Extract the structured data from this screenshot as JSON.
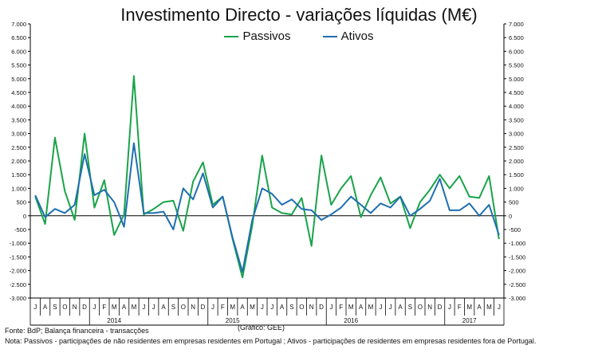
{
  "title": "Investimento  Directo - variações líquidas (M€)",
  "legend": {
    "passivos": "Passivos",
    "ativos": "Ativos"
  },
  "colors": {
    "passivos": "#1aa34a",
    "ativos": "#1f6fb0",
    "axis": "#000000"
  },
  "source": "Fonte: BdP; Balança financeira - transacções",
  "graph_credit": "(Gráfico: GEE)",
  "note": "Nota: Passivos - participações de não residentes em empresas residentes em Portugal ; Ativos - participações de residentes em empresas residentes fora de Portugal.",
  "chart_data": {
    "type": "line",
    "title": "Investimento  Directo - variações líquidas (M€)",
    "ylim": [
      -3000,
      7000
    ],
    "y_ticks": [
      -3000,
      -2500,
      -2000,
      -1500,
      -1000,
      -500,
      0,
      500,
      1000,
      1500,
      2000,
      2500,
      3000,
      3500,
      4000,
      4500,
      5000,
      5500,
      6000,
      6500,
      7000
    ],
    "y_tick_labels": [
      "-3.000",
      "-2.500",
      "-2.000",
      "-1.500",
      "-1.000",
      "-500",
      "0",
      "500",
      "1.000",
      "1.500",
      "2.000",
      "2.500",
      "3.000",
      "3.500",
      "4.000",
      "4.500",
      "5.000",
      "5.500",
      "6.000",
      "6.500",
      "7.000"
    ],
    "month_labels": [
      "J",
      "A",
      "S",
      "O",
      "N",
      "D",
      "J",
      "F",
      "M",
      "A",
      "M",
      "J",
      "J",
      "A",
      "S",
      "O",
      "N",
      "D",
      "J",
      "F",
      "M",
      "A",
      "M",
      "J",
      "J",
      "A",
      "S",
      "O",
      "N",
      "D",
      "J",
      "F",
      "M",
      "A",
      "M",
      "J",
      "J",
      "A",
      "S",
      "O",
      "N",
      "D",
      "J",
      "F",
      "M",
      "A",
      "M",
      "J"
    ],
    "year_labels": [
      {
        "label": "2014",
        "center": 8.5
      },
      {
        "label": "2015",
        "center": 20.5
      },
      {
        "label": "2016",
        "center": 32.5
      },
      {
        "label": "2017",
        "center": 44.5
      }
    ],
    "series": [
      {
        "name": "Passivos",
        "values": [
          700,
          -300,
          2850,
          900,
          -150,
          3000,
          300,
          1300,
          -700,
          50,
          5100,
          50,
          250,
          500,
          550,
          -550,
          1250,
          1950,
          400,
          700,
          -850,
          -2250,
          -350,
          2200,
          300,
          100,
          50,
          650,
          -1100,
          2200,
          400,
          1000,
          1450,
          -50,
          750,
          1400,
          450,
          700,
          -450,
          500,
          950,
          1500,
          1000,
          1450,
          700,
          650,
          1450,
          -850
        ]
      },
      {
        "name": "Ativos",
        "values": [
          750,
          -50,
          250,
          100,
          400,
          2250,
          750,
          950,
          500,
          -400,
          2650,
          100,
          100,
          150,
          -500,
          1000,
          600,
          1550,
          300,
          700,
          -800,
          -2050,
          -150,
          1000,
          800,
          400,
          600,
          250,
          200,
          -150,
          50,
          300,
          700,
          400,
          100,
          450,
          300,
          700,
          0,
          250,
          550,
          1350,
          200,
          200,
          450,
          0,
          400,
          -700
        ]
      }
    ]
  }
}
